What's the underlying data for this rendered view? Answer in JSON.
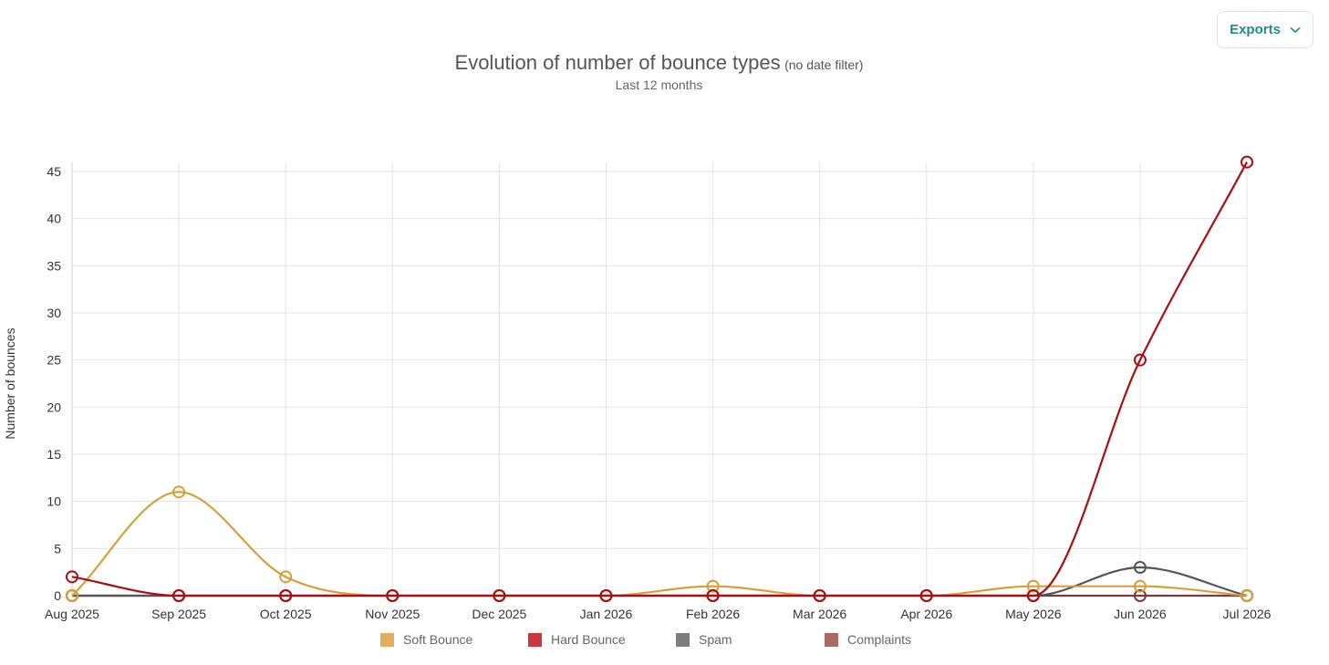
{
  "toolbar": {
    "exports_label": "Exports"
  },
  "chart_data": {
    "type": "line",
    "title": "Evolution of number of bounce types",
    "title_note": "(no date filter)",
    "subtitle": "Last 12 months",
    "xlabel": "",
    "ylabel": "Number of bounces",
    "ylim": [
      0,
      45
    ],
    "yticks": [
      0,
      5,
      10,
      15,
      20,
      25,
      30,
      35,
      40,
      45
    ],
    "grid": true,
    "legend_position": "bottom",
    "categories": [
      "Aug 2025",
      "Sep 2025",
      "Oct 2025",
      "Nov 2025",
      "Dec 2025",
      "Jan 2026",
      "Feb 2026",
      "Mar 2026",
      "Apr 2026",
      "May 2026",
      "Jun 2026",
      "Jul 2026"
    ],
    "series": [
      {
        "name": "Soft Bounce",
        "color": "#d4a03c",
        "legend_color": "#e0ae5c",
        "values": [
          0,
          11,
          2,
          0,
          0,
          0,
          1,
          0,
          0,
          1,
          1,
          0
        ]
      },
      {
        "name": "Hard Bounce",
        "color": "#a80e12",
        "legend_color": "#c9373d",
        "values": [
          2,
          0,
          0,
          0,
          0,
          0,
          0,
          0,
          0,
          0,
          25,
          46
        ]
      },
      {
        "name": "Spam",
        "color": "#555555",
        "legend_color": "#7d7d7d",
        "values": [
          0,
          0,
          0,
          0,
          0,
          0,
          0,
          0,
          0,
          0,
          3,
          0
        ]
      },
      {
        "name": "Complaints",
        "color": "#7a3a3a",
        "legend_color": "#a86b67",
        "values": [
          0,
          0,
          0,
          0,
          0,
          0,
          0,
          0,
          0,
          0,
          0,
          0
        ]
      }
    ]
  }
}
